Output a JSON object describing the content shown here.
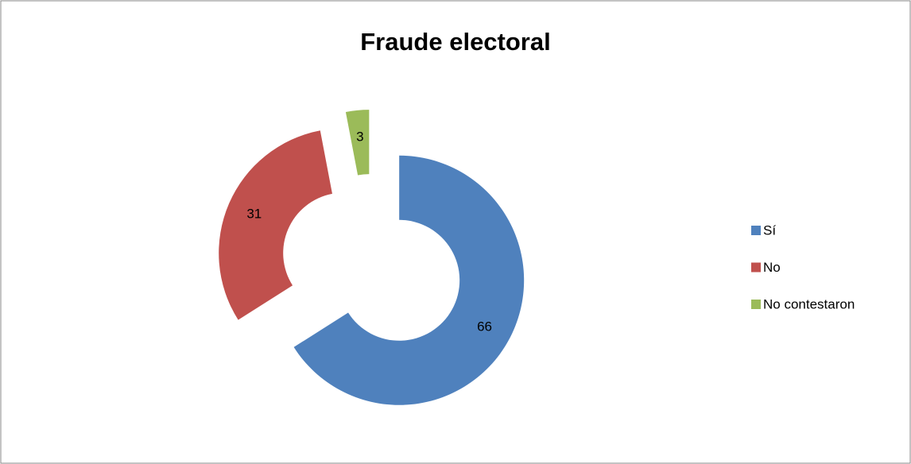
{
  "chart_data": {
    "type": "donut",
    "title": "Fraude electoral",
    "categories": [
      "Sí",
      "No",
      "No contestaron"
    ],
    "values": [
      66,
      31,
      3
    ],
    "colors": [
      "#4f81bd",
      "#c0504d",
      "#9bbb59"
    ],
    "legend": "right"
  }
}
